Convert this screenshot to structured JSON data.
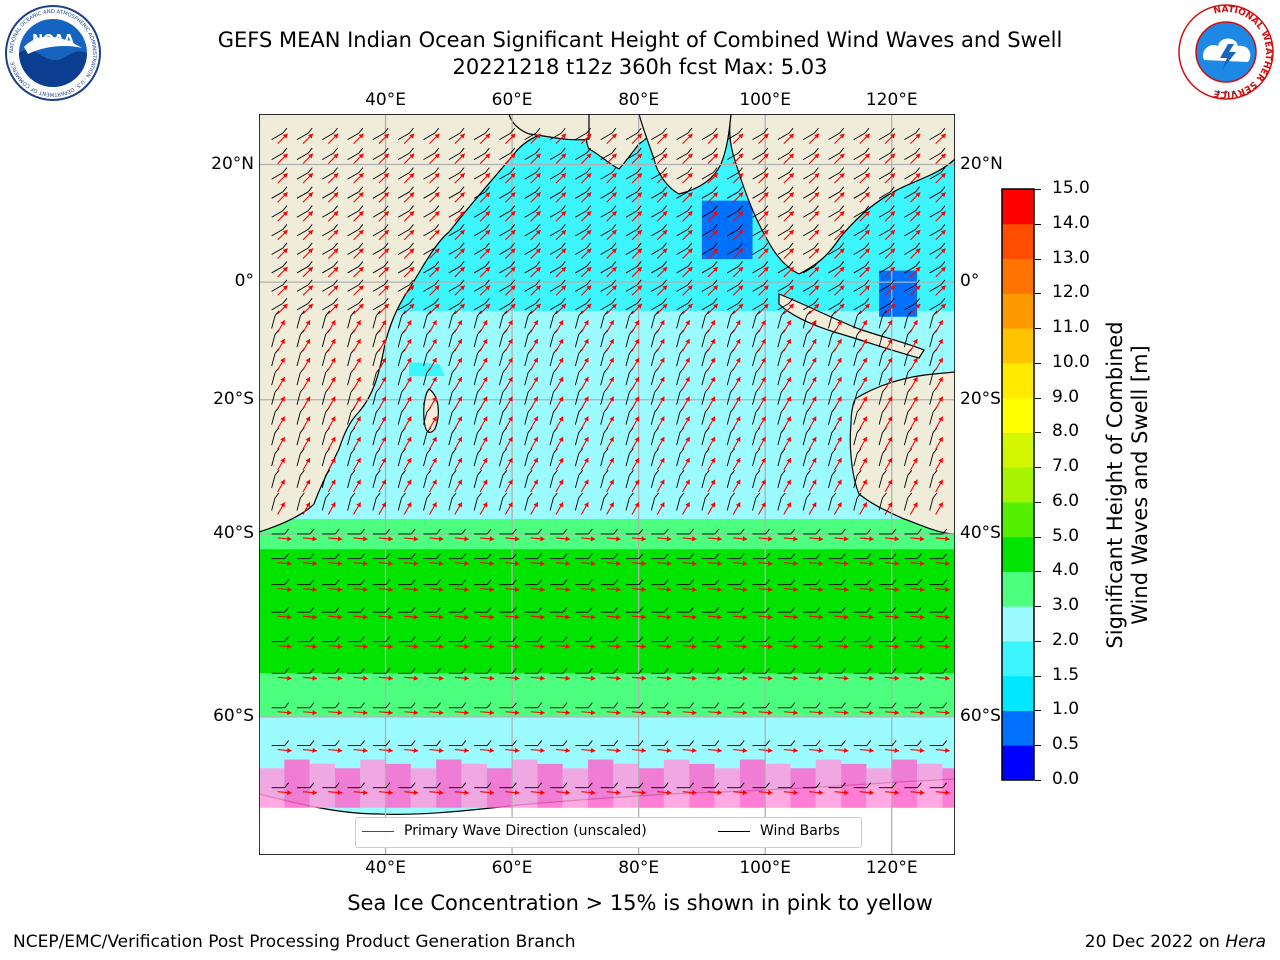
{
  "header": {
    "title_line1": "GEFS MEAN Indian Ocean Significant Height of Combined Wind Waves and Swell",
    "title_line2": "20221218 t12z 360h fcst   Max: 5.03",
    "left_logo_text": "NOAA",
    "left_logo_ring_text": "NATIONAL OCEANIC AND ATMOSPHERIC ADMINISTRATION · U.S. DEPARTMENT OF COMMERCE",
    "right_logo_ring_text": "NATIONAL WEATHER SERVICE"
  },
  "map": {
    "lon_ticks_top": [
      "40°E",
      "60°E",
      "80°E",
      "100°E",
      "120°E"
    ],
    "lon_ticks_bottom": [
      "40°E",
      "60°E",
      "80°E",
      "100°E",
      "120°E"
    ],
    "lat_ticks_left": [
      "20°N",
      "0°",
      "20°S",
      "40°S",
      "60°S"
    ],
    "lat_ticks_right": [
      "20°N",
      "0°",
      "20°S",
      "40°S",
      "60°S"
    ],
    "extent": {
      "lon_min": 20,
      "lon_max": 130,
      "lat_min": -70,
      "lat_max": 28
    },
    "colors": {
      "land": "#efedd9",
      "ice_pink": "#ff66cc",
      "ice_yellow": "#ffcc44",
      "grid": "#b0b0b0"
    }
  },
  "legend": {
    "wave_direction_label": "Primary Wave Direction (unscaled)",
    "wave_direction_color": "#ff0000",
    "wind_barbs_label": "Wind Barbs",
    "wind_barbs_color": "#000000"
  },
  "colorbar": {
    "label_line1": "Significant Height of Combined",
    "label_line2": "Wind Waves and Swell [m]",
    "tick_labels": [
      "0.0",
      "0.5",
      "1.0",
      "1.5",
      "2.0",
      "3.0",
      "4.0",
      "5.0",
      "6.0",
      "7.0",
      "8.0",
      "9.0",
      "10.0",
      "11.0",
      "12.0",
      "13.0",
      "14.0",
      "15.0"
    ],
    "colors": [
      "#0000ff",
      "#0070ff",
      "#00e8ff",
      "#3cf5ff",
      "#9bfbff",
      "#4dff7f",
      "#00e400",
      "#55f000",
      "#a6f400",
      "#d2f700",
      "#ffff00",
      "#ffea00",
      "#ffc400",
      "#ff9900",
      "#ff7300",
      "#ff4d00",
      "#ff0000"
    ]
  },
  "caption": "Sea Ice Concentration > 15% is shown in pink to yellow",
  "footer": {
    "left": "NCEP/EMC/Verification Post Processing Product Generation Branch",
    "right_date": "20 Dec 2022 on ",
    "right_host": "Hera"
  }
}
